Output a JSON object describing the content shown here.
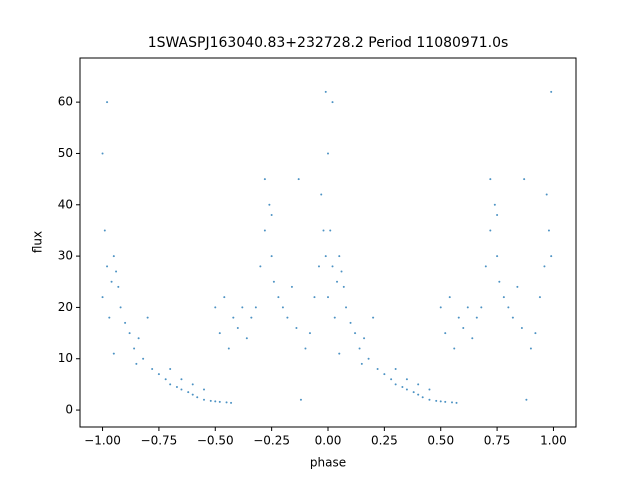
{
  "chart_data": {
    "type": "scatter",
    "title": "1SWASPJ163040.83+232728.2 Period 11080971.0s",
    "xlabel": "phase",
    "ylabel": "flux",
    "color": "#1f77b4",
    "xlim": [
      -1.1,
      1.1
    ],
    "ylim": [
      -3.3,
      68.6
    ],
    "xticks": [
      {
        "value": -1,
        "label": "−1.00"
      },
      {
        "value": -0.75,
        "label": "−0.75"
      },
      {
        "value": -0.5,
        "label": "−0.50"
      },
      {
        "value": -0.25,
        "label": "−0.25"
      },
      {
        "value": 0,
        "label": "0.00"
      },
      {
        "value": 0.25,
        "label": "0.25"
      },
      {
        "value": 0.5,
        "label": "0.50"
      },
      {
        "value": 0.75,
        "label": "0.75"
      },
      {
        "value": 1,
        "label": "1.00"
      }
    ],
    "yticks": [
      0,
      10,
      20,
      30,
      40,
      50,
      60
    ],
    "x": [
      0.0,
      0.01,
      0.02,
      0.03,
      0.04,
      0.05,
      0.06,
      0.07,
      0.08,
      0.1,
      0.12,
      0.14,
      0.16,
      0.18,
      0.2,
      0.22,
      0.25,
      0.28,
      0.3,
      0.33,
      0.35,
      0.38,
      0.4,
      0.42,
      0.45,
      0.48,
      0.5,
      0.52,
      0.55,
      0.57,
      0.3,
      0.35,
      0.4,
      0.45,
      0.5,
      0.52,
      0.54,
      0.56,
      0.58,
      0.6,
      0.62,
      0.64,
      0.66,
      0.68,
      0.7,
      0.72,
      0.74,
      0.75,
      0.76,
      0.78,
      0.8,
      0.82,
      0.84,
      0.86,
      0.87,
      0.88,
      0.9,
      0.92,
      0.94,
      0.96,
      0.98,
      0.99,
      0.0,
      0.02,
      0.72,
      0.75,
      0.05,
      0.15,
      0.97,
      0.99,
      -1.0,
      -0.99,
      -0.98,
      -0.97,
      -0.96,
      -0.95,
      -0.94,
      -0.93,
      -0.92,
      -0.9,
      -0.88,
      -0.86,
      -0.84,
      -0.82,
      -0.8,
      -0.78,
      -0.75,
      -0.72,
      -0.7,
      -0.67,
      -0.65,
      -0.62,
      -0.6,
      -0.58,
      -0.55,
      -0.52,
      -0.5,
      -0.48,
      -0.45,
      -0.43,
      -0.7,
      -0.65,
      -0.6,
      -0.55,
      -0.5,
      -0.48,
      -0.46,
      -0.44,
      -0.42,
      -0.4,
      -0.38,
      -0.36,
      -0.34,
      -0.32,
      -0.3,
      -0.28,
      -0.26,
      -0.25,
      -0.24,
      -0.22,
      -0.2,
      -0.18,
      -0.16,
      -0.14,
      -0.13,
      -0.12,
      -0.1,
      -0.08,
      -0.06,
      -0.04,
      -0.02,
      -0.01,
      -1.0,
      -0.98,
      -0.28,
      -0.25,
      -0.95,
      -0.85,
      -0.03,
      -0.01
    ],
    "y": [
      22,
      35,
      28,
      18,
      25,
      30,
      27,
      24,
      20,
      17,
      15,
      12,
      14,
      10,
      18,
      8,
      7,
      6,
      5,
      4.5,
      4,
      3.5,
      3,
      2.5,
      2,
      1.8,
      1.7,
      1.6,
      1.5,
      1.4,
      8,
      6,
      5,
      4,
      20,
      15,
      22,
      12,
      18,
      16,
      20,
      14,
      18,
      20,
      28,
      35,
      40,
      30,
      25,
      22,
      20,
      18,
      24,
      16,
      45,
      2,
      12,
      15,
      22,
      28,
      35,
      30,
      50,
      60,
      45,
      38,
      11,
      9,
      42,
      62,
      22,
      35,
      28,
      18,
      25,
      30,
      27,
      24,
      20,
      17,
      15,
      12,
      14,
      10,
      18,
      8,
      7,
      6,
      5,
      4.5,
      4,
      3.5,
      3,
      2.5,
      2,
      1.8,
      1.7,
      1.6,
      1.5,
      1.4,
      8,
      6,
      5,
      4,
      20,
      15,
      22,
      12,
      18,
      16,
      20,
      14,
      18,
      20,
      28,
      35,
      40,
      30,
      25,
      22,
      20,
      18,
      24,
      16,
      45,
      2,
      12,
      15,
      22,
      28,
      35,
      30,
      50,
      60,
      45,
      38,
      11,
      9,
      42,
      62
    ]
  }
}
